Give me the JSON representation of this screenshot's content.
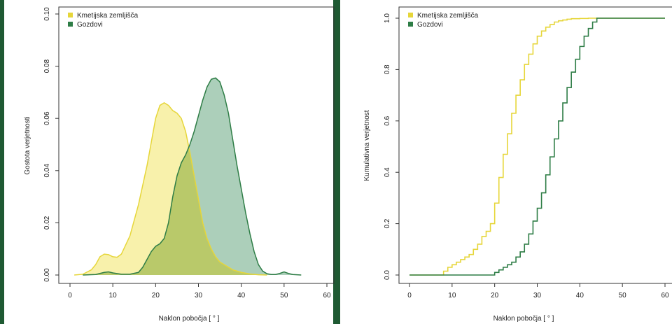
{
  "colors": {
    "background": "#1f5a33",
    "agri_line": "#e6d63a",
    "agri_fill": "#f7ef9c",
    "forest_line": "#2e7d46",
    "forest_fill": "#9ec7ae",
    "overlap_fill": "#b9c96a"
  },
  "chart_data": [
    {
      "type": "area",
      "chart_kind": "density",
      "xlabel": "Naklon pobočja [ ° ]",
      "ylabel": "Gostota verjetnosti",
      "xlim": [
        0,
        60
      ],
      "ylim": [
        0,
        0.1
      ],
      "x_ticks": [
        0,
        10,
        20,
        30,
        40,
        50,
        60
      ],
      "y_ticks": [
        0.0,
        0.02,
        0.04,
        0.06,
        0.08,
        0.1
      ],
      "y_tick_labels": [
        "0.00",
        "0.02",
        "0.04",
        "0.06",
        "0.08",
        "0.10"
      ],
      "grid": false,
      "legend_position": "top-left",
      "series": [
        {
          "name": "Kmetijska zemljišča",
          "x": [
            1,
            3,
            5,
            6,
            7,
            8,
            9,
            10,
            11,
            12,
            14,
            16,
            18,
            19,
            20,
            21,
            22,
            23,
            24,
            25,
            26,
            27,
            28,
            29,
            30,
            31,
            32,
            33,
            34,
            35,
            36,
            37,
            38,
            39,
            40,
            41,
            42,
            44,
            46
          ],
          "values": [
            0,
            0.0003,
            0.002,
            0.004,
            0.007,
            0.008,
            0.0078,
            0.007,
            0.0068,
            0.008,
            0.015,
            0.027,
            0.042,
            0.051,
            0.06,
            0.065,
            0.066,
            0.065,
            0.063,
            0.062,
            0.06,
            0.055,
            0.047,
            0.038,
            0.029,
            0.02,
            0.014,
            0.01,
            0.007,
            0.005,
            0.004,
            0.003,
            0.002,
            0.0015,
            0.001,
            0.0007,
            0.0004,
            0.0001,
            0
          ]
        },
        {
          "name": "Gozdovi",
          "x": [
            3,
            6,
            8,
            9,
            10,
            12,
            14,
            16,
            17,
            18,
            19,
            20,
            21,
            22,
            23,
            24,
            25,
            26,
            27,
            28,
            29,
            30,
            31,
            32,
            33,
            34,
            35,
            36,
            37,
            38,
            39,
            40,
            41,
            42,
            43,
            44,
            45,
            46,
            47,
            48,
            49,
            50,
            51,
            52,
            54
          ],
          "values": [
            0,
            0.0002,
            0.001,
            0.0012,
            0.0008,
            0.0003,
            0.0003,
            0.001,
            0.003,
            0.006,
            0.009,
            0.011,
            0.012,
            0.014,
            0.02,
            0.03,
            0.038,
            0.043,
            0.046,
            0.05,
            0.055,
            0.061,
            0.067,
            0.072,
            0.075,
            0.0755,
            0.074,
            0.069,
            0.062,
            0.052,
            0.042,
            0.033,
            0.024,
            0.016,
            0.009,
            0.004,
            0.0015,
            0.0005,
            0.0002,
            0.0002,
            0.0006,
            0.0012,
            0.0006,
            0.0002,
            0
          ]
        }
      ]
    },
    {
      "type": "line",
      "chart_kind": "cumulative",
      "xlabel": "Naklon pobočja [ ° ]",
      "ylabel": "Kumulativna verjetnost",
      "xlim": [
        0,
        60
      ],
      "ylim": [
        0,
        1
      ],
      "x_ticks": [
        0,
        10,
        20,
        30,
        40,
        50,
        60
      ],
      "y_ticks": [
        0.0,
        0.2,
        0.4,
        0.6,
        0.8,
        1.0
      ],
      "y_tick_labels": [
        "0.0",
        "0.2",
        "0.4",
        "0.6",
        "0.8",
        "1.0"
      ],
      "grid": false,
      "legend_position": "top-left",
      "series": [
        {
          "name": "Kmetijska zemljišča",
          "x": [
            0,
            7.5,
            8,
            9,
            10,
            11,
            12,
            13,
            14,
            15,
            16,
            17,
            18,
            19,
            20,
            21,
            22,
            23,
            24,
            25,
            26,
            27,
            28,
            29,
            30,
            31,
            32,
            33,
            34,
            35,
            36,
            37,
            38,
            40,
            42,
            45,
            60
          ],
          "values": [
            0,
            0,
            0.015,
            0.03,
            0.04,
            0.05,
            0.06,
            0.07,
            0.08,
            0.1,
            0.12,
            0.15,
            0.17,
            0.2,
            0.28,
            0.38,
            0.47,
            0.55,
            0.63,
            0.7,
            0.76,
            0.82,
            0.86,
            0.9,
            0.93,
            0.95,
            0.965,
            0.975,
            0.985,
            0.99,
            0.993,
            0.996,
            0.998,
            0.999,
            1.0,
            1.0,
            1.0
          ]
        },
        {
          "name": "Gozdovi",
          "x": [
            0,
            19,
            20,
            21,
            22,
            23,
            24,
            25,
            26,
            27,
            28,
            29,
            30,
            31,
            32,
            33,
            34,
            35,
            36,
            37,
            38,
            39,
            40,
            41,
            42,
            43,
            44,
            60
          ],
          "values": [
            0,
            0,
            0.01,
            0.02,
            0.03,
            0.04,
            0.05,
            0.07,
            0.09,
            0.12,
            0.16,
            0.21,
            0.26,
            0.32,
            0.39,
            0.46,
            0.53,
            0.6,
            0.67,
            0.73,
            0.79,
            0.84,
            0.89,
            0.93,
            0.96,
            0.985,
            1.0,
            1.0
          ]
        }
      ]
    }
  ]
}
